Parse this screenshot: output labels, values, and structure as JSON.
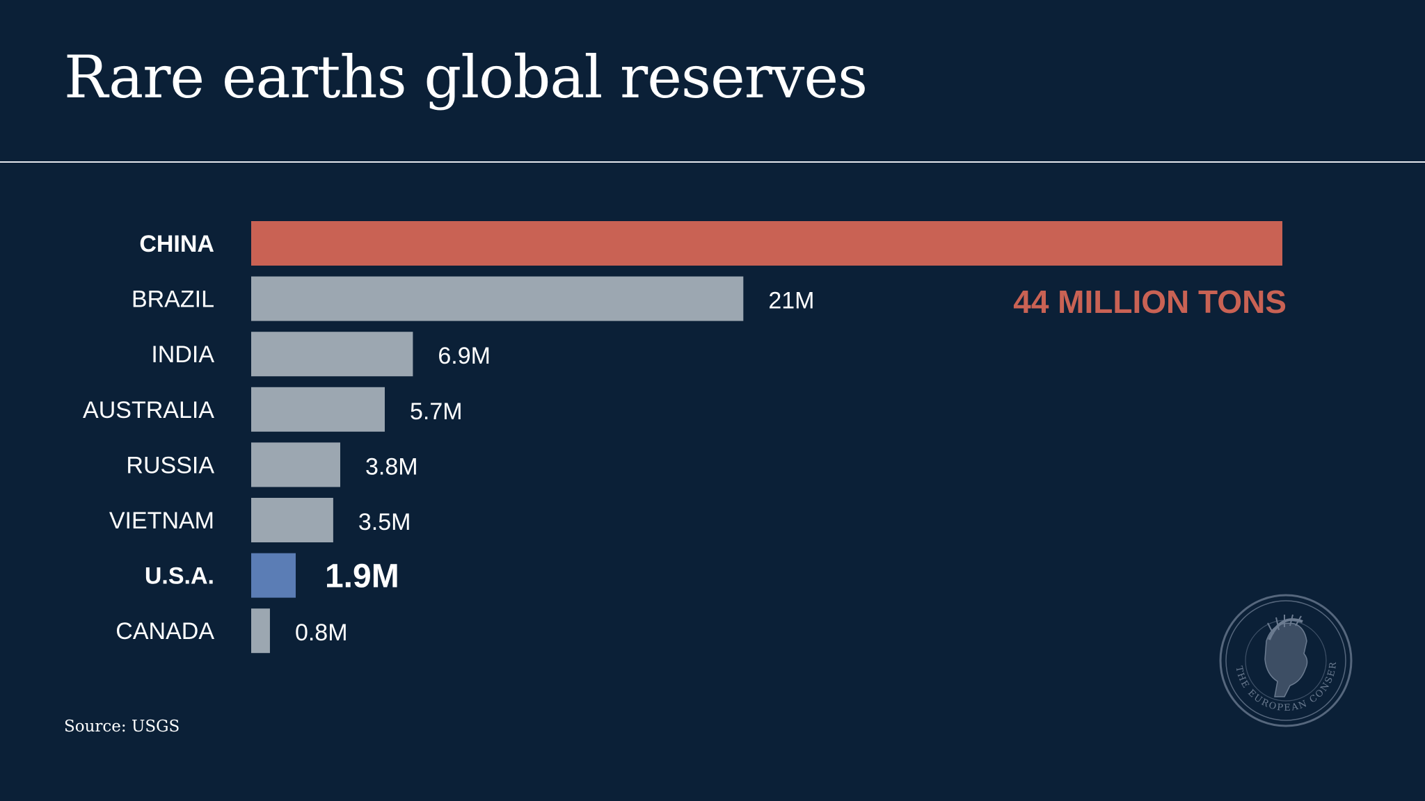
{
  "chart_data": {
    "type": "bar",
    "orientation": "horizontal",
    "title": "Rare earths global reserves",
    "categories": [
      "CHINA",
      "BRAZIL",
      "INDIA",
      "AUSTRALIA",
      "RUSSIA",
      "VIETNAM",
      "U.S.A.",
      "CANADA"
    ],
    "values": [
      44,
      21,
      6.9,
      5.7,
      3.8,
      3.5,
      1.9,
      0.8
    ],
    "value_labels": [
      "44 MILLION TONS",
      "21M",
      "6.9M",
      "5.7M",
      "3.8M",
      "3.5M",
      "1.9M",
      "0.8M"
    ],
    "highlight": {
      "CHINA": "#c96254",
      "U.S.A.": "#5b7db5"
    },
    "default_bar_color": "#9ca7b1",
    "xlim": [
      0,
      44
    ],
    "grid": false,
    "legend": "none"
  },
  "source": "Source: USGS",
  "logo": {
    "text": "THE EUROPEAN CONSERVATIVE",
    "icon": "helmeted-head-seal-icon"
  },
  "colors": {
    "background": "#0b2037",
    "text": "#ffffff",
    "rule": "#e6e9ee"
  }
}
